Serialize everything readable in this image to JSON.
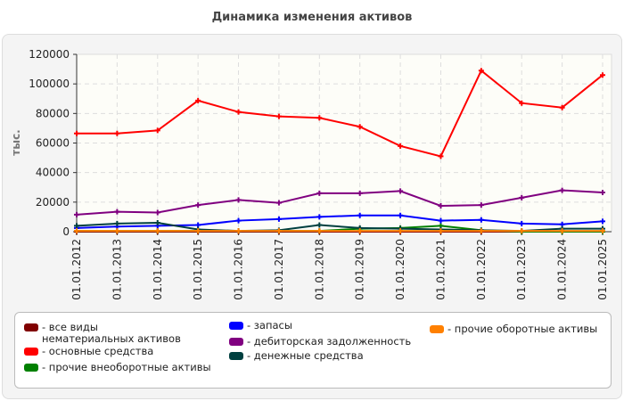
{
  "chart_data": {
    "type": "line",
    "title": "Динамика изменения активов",
    "ylabel": "тыс.",
    "xlabel": "",
    "ylim": [
      0,
      120000
    ],
    "yticks": [
      0,
      20000,
      40000,
      60000,
      80000,
      100000,
      120000
    ],
    "grid": true,
    "legend_position": "bottom",
    "categories": [
      "01.01.2012",
      "01.01.2013",
      "01.01.2014",
      "01.01.2015",
      "01.01.2016",
      "01.01.2017",
      "01.01.2018",
      "01.01.2019",
      "01.01.2020",
      "01.01.2021",
      "01.01.2022",
      "01.01.2023",
      "01.01.2024",
      "01.01.2025"
    ],
    "series": [
      {
        "name": "- все виды нематериальных активов",
        "color": "#800000",
        "values": [
          0,
          0,
          0,
          0,
          0,
          0,
          0,
          0,
          0,
          0,
          0,
          0,
          0,
          0
        ]
      },
      {
        "name": "- основные средства",
        "color": "#ff0000",
        "values": [
          66500,
          66500,
          68500,
          88700,
          81000,
          78000,
          77000,
          71000,
          58000,
          51000,
          109000,
          87000,
          84000,
          106000
        ]
      },
      {
        "name": "- прочие внеоборотные активы",
        "color": "#008000",
        "values": [
          500,
          500,
          500,
          500,
          500,
          500,
          500,
          2000,
          2500,
          4000,
          1000,
          0,
          0,
          0
        ]
      },
      {
        "name": "- запасы",
        "color": "#0000ff",
        "values": [
          2500,
          3500,
          4000,
          4500,
          7500,
          8500,
          10000,
          11000,
          11000,
          7500,
          8000,
          5500,
          5000,
          7000
        ]
      },
      {
        "name": "- дебиторская задолженность",
        "color": "#800080",
        "values": [
          11500,
          13500,
          13000,
          18000,
          21500,
          19500,
          26000,
          26000,
          27500,
          17500,
          18000,
          23000,
          28000,
          26500
        ]
      },
      {
        "name": "- денежные средства",
        "color": "#004040",
        "values": [
          4000,
          5500,
          6000,
          1500,
          500,
          1000,
          4500,
          2500,
          2000,
          1500,
          1000,
          500,
          2000,
          2000
        ]
      },
      {
        "name": "- прочие оборотные активы",
        "color": "#ff8000",
        "values": [
          500,
          500,
          500,
          500,
          500,
          500,
          500,
          500,
          500,
          500,
          500,
          500,
          500,
          500
        ]
      }
    ]
  }
}
